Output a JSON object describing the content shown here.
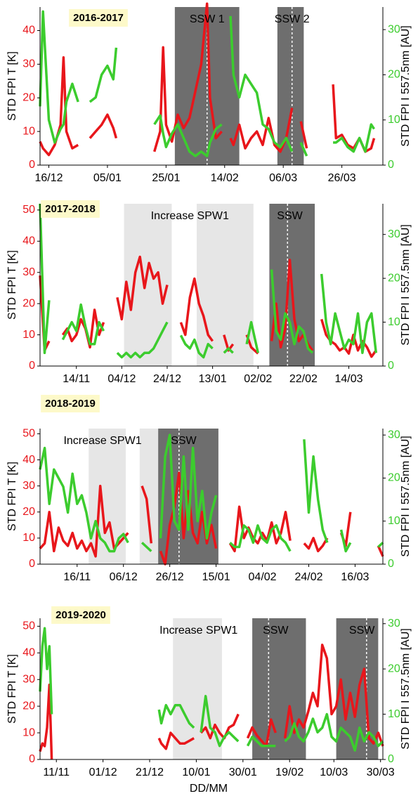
{
  "chart_data": [
    {
      "type": "line",
      "title": "2016-2017",
      "ylabel": "STD FPI T [K]",
      "y2label": "STD FPI I 557.5nm [AU]",
      "xlim": [
        "13/12",
        "09/04"
      ],
      "xticks": [
        "16/12",
        "05/01",
        "25/01",
        "14/02",
        "06/03",
        "26/03"
      ],
      "ylim": [
        0,
        47
      ],
      "yticks": [
        0,
        10,
        20,
        30,
        40
      ],
      "y2lim": [
        0,
        35
      ],
      "y2ticks": [
        0,
        10,
        20,
        30
      ],
      "spans": [
        {
          "start": "28/01",
          "end": "19/02",
          "central": "08/02",
          "color": "#6e6e6e"
        },
        {
          "start": "04/03",
          "end": "13/03",
          "central": "09/03",
          "color": "#6e6e6e"
        }
      ],
      "annotations": [
        {
          "text": "SSW 1",
          "x": "08/02"
        },
        {
          "text": "SSW 2",
          "x": "09/03"
        }
      ],
      "x": [
        "13/12",
        "14/12",
        "16/12",
        "18/12",
        "20/12",
        "21/12",
        "22/12",
        "24/12",
        "26/12",
        "28/12",
        "30/12",
        "01/01",
        "03/01",
        "05/01",
        "07/01",
        "08/01",
        "10/01",
        "21/01",
        "23/01",
        "24/01",
        "25/01",
        "27/01",
        "29/01",
        "31/01",
        "02/02",
        "04/02",
        "06/02",
        "08/02",
        "09/02",
        "11/02",
        "13/02",
        "14/02",
        "16/02",
        "17/02",
        "19/02",
        "21/02",
        "23/02",
        "25/02",
        "27/02",
        "01/03",
        "03/03",
        "05/03",
        "07/03",
        "09/03",
        "10/03",
        "12/03",
        "14/03",
        "15/03",
        "23/03",
        "24/03",
        "26/03",
        "28/03",
        "30/03",
        "01/04",
        "03/04",
        "05/04",
        "06/04"
      ],
      "series": [
        {
          "color": "#e8161b",
          "values": [
            7,
            5,
            3,
            6,
            12,
            32,
            10,
            5,
            6,
            null,
            8,
            10,
            12,
            15,
            11,
            8,
            null,
            4,
            10,
            35,
            12,
            7,
            15,
            11,
            14,
            22,
            30,
            48,
            20,
            8,
            10,
            null,
            8,
            6,
            12,
            5,
            8,
            10,
            6,
            14,
            6,
            4,
            8,
            17,
            null,
            13,
            5,
            null,
            24,
            8,
            9,
            6,
            5,
            8,
            4,
            5,
            8
          ]
        },
        {
          "color": "#3ccc2e",
          "axis": "y2",
          "values": [
            13,
            34,
            10,
            5,
            8,
            9,
            14,
            18,
            14,
            null,
            14,
            15,
            20,
            22,
            19,
            26,
            null,
            9,
            11,
            7,
            4,
            7,
            9,
            6,
            3,
            2,
            3,
            2,
            5,
            8,
            9,
            null,
            33,
            20,
            15,
            20,
            18,
            16,
            9,
            8,
            5,
            4,
            6,
            3,
            null,
            5,
            2,
            null,
            5,
            5,
            6,
            4,
            3,
            6,
            3,
            9,
            8
          ]
        }
      ]
    },
    {
      "type": "line",
      "title": "2017-2018",
      "ylabel": "STD FPI T [K]",
      "y2label": "STD FPI I 557.5nm [AU]",
      "xlim": [
        "29/10",
        "29/03"
      ],
      "xticks": [
        "14/11",
        "04/12",
        "24/12",
        "13/01",
        "02/02",
        "22/02",
        "14/03"
      ],
      "ylim": [
        0,
        52
      ],
      "yticks": [
        0,
        10,
        20,
        30,
        40,
        50
      ],
      "y2lim": [
        0,
        37
      ],
      "y2ticks": [
        0,
        10,
        20,
        30
      ],
      "spans": [
        {
          "start": "05/12",
          "end": "26/12",
          "color": "#e6e6e6"
        },
        {
          "start": "06/01",
          "end": "31/01",
          "color": "#e6e6e6"
        },
        {
          "start": "07/02",
          "end": "27/02",
          "central": "15/02",
          "color": "#6e6e6e"
        }
      ],
      "annotations": [
        {
          "text": "Increase SPW1",
          "x": "03/01"
        },
        {
          "text": "SSW",
          "x": "16/02"
        }
      ],
      "x": [
        "29/10",
        "31/10",
        "02/11",
        "04/11",
        "08/11",
        "10/11",
        "12/11",
        "14/11",
        "16/11",
        "18/11",
        "20/11",
        "22/11",
        "24/11",
        "26/11",
        "28/11",
        "02/12",
        "04/12",
        "06/12",
        "08/12",
        "10/12",
        "12/12",
        "14/12",
        "16/12",
        "18/12",
        "20/12",
        "22/12",
        "24/12",
        "25/12",
        "30/12",
        "01/01",
        "03/01",
        "05/01",
        "07/01",
        "09/01",
        "11/01",
        "13/01",
        "14/01",
        "18/01",
        "20/01",
        "22/01",
        "24/01",
        "28/01",
        "30/01",
        "02/02",
        "04/02",
        "08/02",
        "10/02",
        "12/02",
        "14/02",
        "16/02",
        "18/02",
        "20/02",
        "22/02",
        "24/02",
        "26/02",
        "28/02",
        "02/03",
        "04/03",
        "06/03",
        "08/03",
        "10/03",
        "12/03",
        "14/03",
        "16/03",
        "18/03",
        "20/03",
        "22/03",
        "24/03",
        "26/03"
      ],
      "series": [
        {
          "color": "#e8161b",
          "values": [
            29,
            5,
            8,
            null,
            10,
            12,
            8,
            10,
            15,
            12,
            6,
            18,
            10,
            14,
            null,
            22,
            15,
            27,
            18,
            30,
            35,
            25,
            33,
            28,
            30,
            20,
            26,
            null,
            14,
            10,
            22,
            28,
            20,
            16,
            10,
            8,
            null,
            10,
            5,
            7,
            null,
            10,
            6,
            4,
            null,
            8,
            20,
            6,
            12,
            34,
            15,
            8,
            10,
            7,
            5,
            null,
            15,
            10,
            8,
            7,
            5,
            6,
            4,
            10,
            5,
            8,
            6,
            3,
            5
          ]
        },
        {
          "color": "#3ccc2e",
          "axis": "y2",
          "values": [
            37,
            3,
            15,
            null,
            6,
            8,
            10,
            8,
            14,
            9,
            5,
            5,
            10,
            8,
            null,
            3,
            2,
            3,
            2,
            3,
            2,
            3,
            3,
            4,
            6,
            8,
            10,
            null,
            7,
            5,
            4,
            6,
            3,
            2,
            5,
            4,
            null,
            3,
            4,
            3,
            null,
            5,
            10,
            3,
            null,
            22,
            8,
            6,
            12,
            10,
            5,
            9,
            8,
            4,
            3,
            null,
            21,
            10,
            5,
            12,
            8,
            4,
            6,
            5,
            12,
            3,
            10,
            12,
            3
          ]
        }
      ]
    },
    {
      "type": "line",
      "title": "2018-2019",
      "ylabel": "STD FPI T [K]",
      "y2label": "STD FPI I 557.5nm [AU]",
      "xlim": [
        "31/10",
        "28/03"
      ],
      "xticks": [
        "16/11",
        "06/12",
        "26/12",
        "15/01",
        "04/02",
        "24/02",
        "16/03"
      ],
      "ylim": [
        0,
        52
      ],
      "yticks": [
        0,
        10,
        20,
        30,
        40,
        50
      ],
      "y2lim": [
        0,
        31.5
      ],
      "y2ticks": [
        0,
        10,
        20,
        30
      ],
      "spans": [
        {
          "start": "21/11",
          "end": "07/12",
          "color": "#e6e6e6"
        },
        {
          "start": "13/12",
          "end": "21/12",
          "color": "#e6e6e6"
        },
        {
          "start": "21/12",
          "end": "16/01",
          "central": "30/12",
          "color": "#6e6e6e"
        }
      ],
      "annotations": [
        {
          "text": "Increase SPW1",
          "x": "27/11"
        },
        {
          "text": "SSW",
          "x": "01/01"
        }
      ],
      "x": [
        "31/10",
        "02/11",
        "04/11",
        "06/11",
        "08/11",
        "10/11",
        "12/11",
        "14/11",
        "16/11",
        "18/11",
        "20/11",
        "22/11",
        "24/11",
        "26/11",
        "28/11",
        "30/11",
        "02/12",
        "04/12",
        "06/12",
        "08/12",
        "10/12",
        "14/12",
        "16/12",
        "18/12",
        "20/12",
        "22/12",
        "24/12",
        "26/12",
        "28/12",
        "30/12",
        "01/01",
        "03/01",
        "05/01",
        "07/01",
        "09/01",
        "11/01",
        "13/01",
        "15/01",
        "17/01",
        "21/01",
        "23/01",
        "25/01",
        "27/01",
        "29/01",
        "31/01",
        "02/02",
        "04/02",
        "06/02",
        "08/02",
        "10/02",
        "12/02",
        "14/02",
        "16/02",
        "18/02",
        "22/02",
        "24/02",
        "26/02",
        "28/02",
        "02/03",
        "04/03",
        "06/03",
        "10/03",
        "12/03",
        "14/03",
        "15/03",
        "22/03",
        "24/03",
        "26/03",
        "28/03"
      ],
      "series": [
        {
          "color": "#e8161b",
          "values": [
            6,
            8,
            20,
            5,
            14,
            9,
            7,
            12,
            6,
            9,
            5,
            8,
            3,
            30,
            12,
            16,
            6,
            8,
            10,
            12,
            null,
            30,
            25,
            8,
            null,
            5,
            0,
            15,
            22,
            35,
            10,
            28,
            12,
            8,
            20,
            8,
            15,
            6,
            null,
            8,
            5,
            22,
            10,
            14,
            10,
            8,
            12,
            9,
            16,
            8,
            12,
            20,
            9,
            null,
            8,
            6,
            10,
            5,
            7,
            10,
            null,
            12,
            7,
            20,
            null,
            1,
            null,
            7,
            3
          ]
        },
        {
          "color": "#3ccc2e",
          "axis": "y2",
          "values": [
            22,
            27,
            14,
            22,
            20,
            18,
            12,
            21,
            14,
            16,
            12,
            6,
            10,
            6,
            5,
            3,
            3,
            6,
            7,
            5,
            null,
            5,
            4,
            3,
            null,
            6,
            25,
            30,
            10,
            8,
            25,
            8,
            27,
            10,
            17,
            6,
            12,
            16,
            null,
            5,
            4,
            4,
            9,
            8,
            5,
            9,
            6,
            5,
            8,
            9,
            6,
            5,
            3,
            null,
            29,
            12,
            25,
            15,
            8,
            5,
            null,
            8,
            3,
            5,
            null,
            1,
            null,
            4,
            5
          ]
        }
      ]
    },
    {
      "type": "line",
      "title": "2019-2020",
      "ylabel": "STD FPI T [K]",
      "y2label": "STD FPI I 557.5nm [AU]",
      "xlabel": "DD/MM",
      "xlim": [
        "04/11",
        "31/03"
      ],
      "xticks": [
        "11/11",
        "01/12",
        "21/12",
        "10/01",
        "30/01",
        "19/02",
        "10/03",
        "30/03"
      ],
      "ylim": [
        0,
        53
      ],
      "yticks": [
        0,
        10,
        20,
        30,
        40,
        50
      ],
      "y2lim": [
        0,
        31.2
      ],
      "y2ticks": [
        0,
        10,
        20,
        30
      ],
      "spans": [
        {
          "start": "31/12",
          "end": "21/01",
          "color": "#e6e6e6"
        },
        {
          "start": "03/02",
          "end": "26/02",
          "central": "10/02",
          "color": "#6e6e6e"
        },
        {
          "start": "11/03",
          "end": "29/03",
          "central": "24/03",
          "color": "#6e6e6e"
        }
      ],
      "annotations": [
        {
          "text": "Increase SPW1",
          "x": "11/01"
        },
        {
          "text": "SSW",
          "x": "13/02"
        },
        {
          "text": "SSW",
          "x": "22/03"
        }
      ],
      "x": [
        "04/11",
        "05/11",
        "06/11",
        "07/11",
        "08/11",
        "09/11",
        "10/11",
        "25/12",
        "26/12",
        "28/12",
        "30/12",
        "01/01",
        "03/01",
        "05/01",
        "07/01",
        "09/01",
        "10/01",
        "12/01",
        "14/01",
        "16/01",
        "18/01",
        "20/01",
        "22/01",
        "24/01",
        "26/01",
        "28/01",
        "29/01",
        "01/02",
        "03/02",
        "05/02",
        "07/02",
        "09/02",
        "11/02",
        "13/02",
        "15/02",
        "17/02",
        "19/02",
        "21/02",
        "23/02",
        "25/02",
        "27/02",
        "01/03",
        "03/03",
        "05/03",
        "07/03",
        "09/03",
        "11/03",
        "13/03",
        "15/03",
        "17/03",
        "19/03",
        "21/03",
        "23/03",
        "25/03",
        "27/03",
        "29/03",
        "31/03"
      ],
      "series": [
        {
          "color": "#e8161b",
          "values": [
            3,
            6,
            5,
            12,
            28,
            0,
            null,
            8,
            6,
            4,
            10,
            8,
            6,
            6,
            7,
            8,
            null,
            10,
            12,
            8,
            13,
            10,
            8,
            12,
            13,
            17,
            null,
            8,
            12,
            9,
            7,
            5,
            15,
            10,
            null,
            8,
            20,
            10,
            15,
            12,
            18,
            25,
            20,
            43,
            38,
            17,
            20,
            30,
            15,
            25,
            16,
            28,
            34,
            8,
            6,
            10,
            5
          ]
        },
        {
          "color": "#3ccc2e",
          "axis": "y2",
          "values": [
            15,
            25,
            29,
            20,
            25,
            10,
            null,
            11,
            8,
            12,
            10,
            12,
            12,
            10,
            8,
            7,
            null,
            6,
            14,
            7,
            6,
            3,
            5,
            6,
            5,
            4,
            null,
            3,
            5,
            4,
            3,
            3,
            3,
            3,
            null,
            4,
            5,
            8,
            5,
            4,
            6,
            9,
            6,
            7,
            10,
            5,
            4,
            7,
            6,
            5,
            2,
            7,
            4,
            6,
            5,
            3,
            4
          ]
        }
      ]
    }
  ]
}
